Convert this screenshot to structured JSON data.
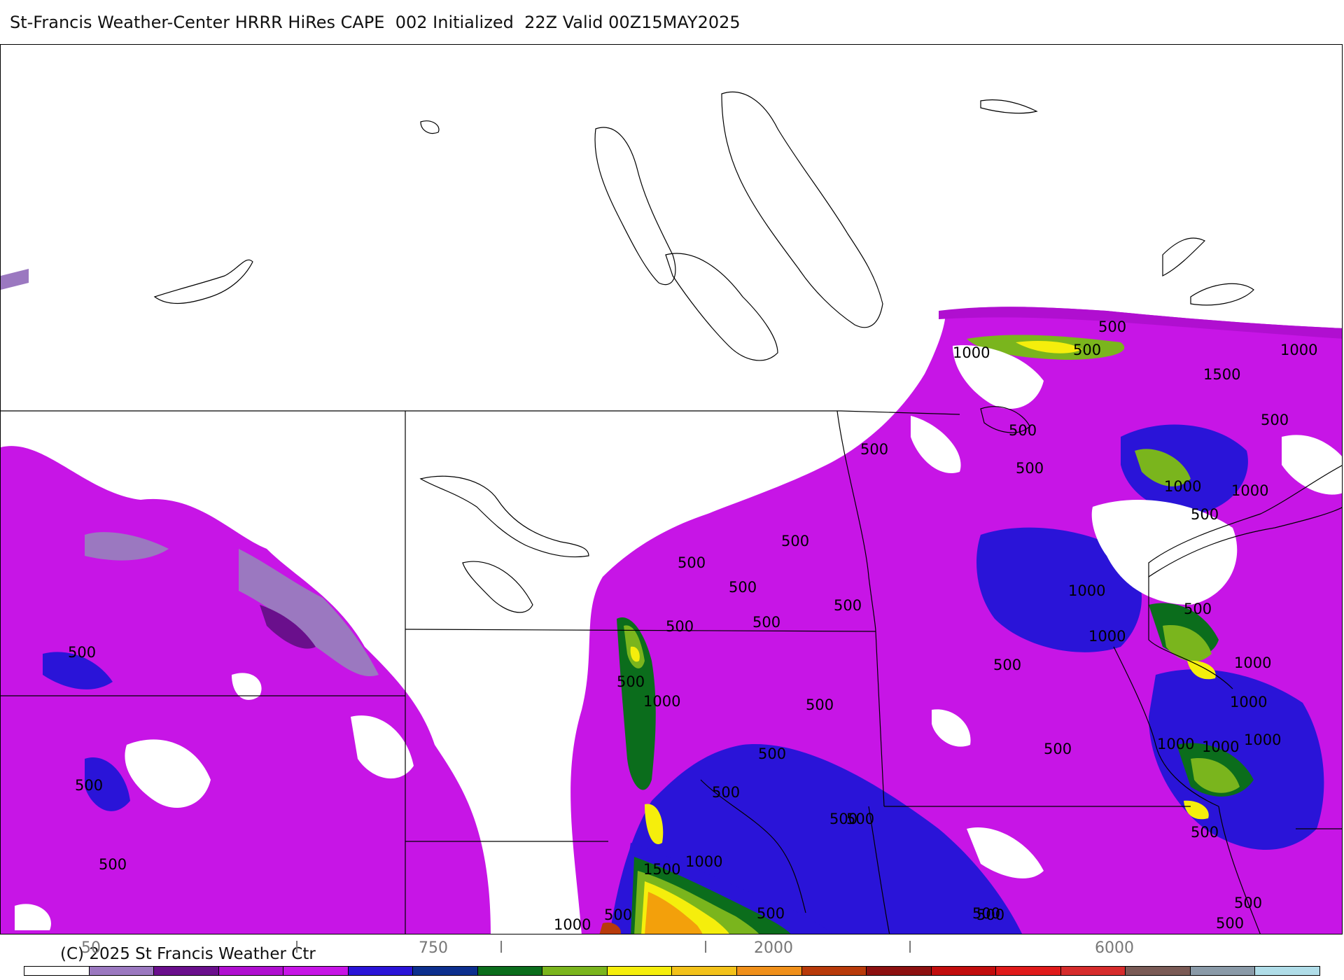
{
  "title": "St-Francis Weather-Center HRRR HiRes CAPE  002 Initialized  22Z Valid 00Z15MAY2025",
  "copyright": "(C) 2025 St Francis Weather Ctr",
  "colors": {
    "background": "#ffffff",
    "light_purple": "#9b78c0",
    "dark_purple": "#6a0f8c",
    "magenta": "#b00fd0",
    "violet": "#c715e6",
    "blue": "#2a14d8",
    "dark_blue": "#0c2f8e",
    "dark_green": "#0b6d1c",
    "green": "#7ab51d",
    "yellow": "#f5ee0c",
    "orange": "#f3a00b",
    "dark_orange": "#e07a0b",
    "brown": "#b83a0a"
  },
  "legend": {
    "tick_labels": [
      "50",
      "l",
      "750",
      "l",
      "l",
      "2000",
      "l",
      "6000"
    ],
    "colors": [
      "#ffffff",
      "#9b78c0",
      "#6a0f8c",
      "#b00fd0",
      "#c715e6",
      "#2a14d8",
      "#0c2f8e",
      "#0b6d1c",
      "#7ab51d",
      "#f5ee0c",
      "#f3c21a",
      "#f0901a",
      "#b83a0a",
      "#8c1010",
      "#c20d0d",
      "#e01a1a",
      "#d62c2c",
      "#7a5a55",
      "#8a9aa8",
      "#b0dde8"
    ]
  },
  "contour_labels": [
    {
      "text": "500"
    },
    {
      "text": "500"
    },
    {
      "text": "1000"
    },
    {
      "text": "1000"
    },
    {
      "text": "1500"
    },
    {
      "text": "500"
    },
    {
      "text": "500"
    },
    {
      "text": "500"
    },
    {
      "text": "500"
    },
    {
      "text": "1000"
    },
    {
      "text": "1000"
    },
    {
      "text": "500"
    },
    {
      "text": "500"
    },
    {
      "text": "500"
    },
    {
      "text": "500"
    },
    {
      "text": "500"
    },
    {
      "text": "500"
    },
    {
      "text": "500"
    },
    {
      "text": "500"
    },
    {
      "text": "500"
    },
    {
      "text": "1000"
    },
    {
      "text": "500"
    },
    {
      "text": "1000"
    },
    {
      "text": "1000"
    },
    {
      "text": "500"
    },
    {
      "text": "500"
    },
    {
      "text": "1000"
    },
    {
      "text": "1000"
    },
    {
      "text": "1000"
    },
    {
      "text": "500"
    },
    {
      "text": "1000"
    },
    {
      "text": "1000"
    },
    {
      "text": "500"
    },
    {
      "text": "500"
    },
    {
      "text": "500"
    },
    {
      "text": "500"
    },
    {
      "text": "500"
    },
    {
      "text": "500"
    },
    {
      "text": "500"
    },
    {
      "text": "1500"
    },
    {
      "text": "1000"
    },
    {
      "text": "500"
    },
    {
      "text": "500"
    },
    {
      "text": "500"
    },
    {
      "text": "500"
    },
    {
      "text": "500"
    },
    {
      "text": "500"
    },
    {
      "text": "1000"
    }
  ]
}
